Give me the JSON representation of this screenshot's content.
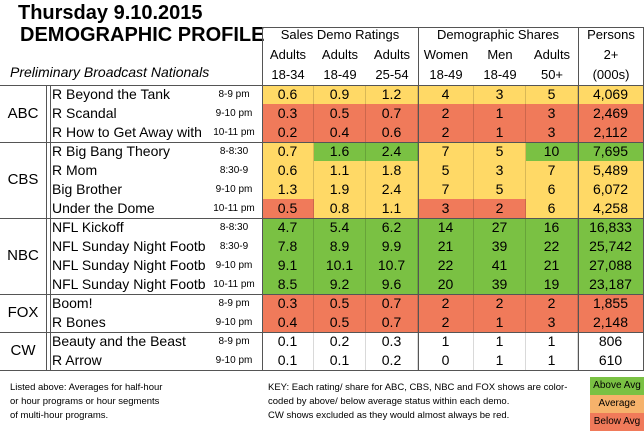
{
  "title_line1": "Thursday 9.10.2015",
  "title_line2": "DEMOGRAPHIC PROFILE",
  "subtitle": "Preliminary Broadcast Nationals",
  "groups": {
    "sales": "Sales Demo Ratings",
    "shares": "Demographic Shares",
    "persons": "Persons"
  },
  "columns": [
    {
      "line1": "Adults",
      "line2": "18-34"
    },
    {
      "line1": "Adults",
      "line2": "18-49"
    },
    {
      "line1": "Adults",
      "line2": "25-54"
    },
    {
      "line1": "Women",
      "line2": "18-49"
    },
    {
      "line1": "Men",
      "line2": "18-49"
    },
    {
      "line1": "Adults",
      "line2": "50+"
    },
    {
      "line1": "2+",
      "line2": "(000s)"
    }
  ],
  "networks": [
    {
      "name": "ABC",
      "rows": [
        {
          "show": "R Beyond the Tank",
          "slot": "8-9 pm",
          "values": [
            "0.6",
            "0.9",
            "1.2",
            "4",
            "3",
            "5",
            "4,069"
          ],
          "status": [
            "avg",
            "avg",
            "avg",
            "avg",
            "avg",
            "avg",
            "avg"
          ]
        },
        {
          "show": "R Scandal",
          "slot": "9-10 pm",
          "values": [
            "0.3",
            "0.5",
            "0.7",
            "2",
            "1",
            "3",
            "2,469"
          ],
          "status": [
            "below",
            "below",
            "below",
            "below",
            "below",
            "below",
            "below"
          ]
        },
        {
          "show": "R How to Get Away with M",
          "slot": "10-11 pm",
          "values": [
            "0.2",
            "0.4",
            "0.6",
            "2",
            "1",
            "3",
            "2,112"
          ],
          "status": [
            "below",
            "below",
            "below",
            "below",
            "below",
            "below",
            "below"
          ]
        }
      ]
    },
    {
      "name": "CBS",
      "rows": [
        {
          "show": "R Big Bang Theory",
          "slot": "8-8:30",
          "values": [
            "0.7",
            "1.6",
            "2.4",
            "7",
            "5",
            "10",
            "7,695"
          ],
          "status": [
            "avg",
            "above",
            "above",
            "avg",
            "avg",
            "above",
            "above"
          ]
        },
        {
          "show": "R Mom",
          "slot": "8:30-9",
          "values": [
            "0.6",
            "1.1",
            "1.8",
            "5",
            "3",
            "7",
            "5,489"
          ],
          "status": [
            "avg",
            "avg",
            "avg",
            "avg",
            "avg",
            "avg",
            "avg"
          ]
        },
        {
          "show": "Big Brother",
          "slot": "9-10 pm",
          "values": [
            "1.3",
            "1.9",
            "2.4",
            "7",
            "5",
            "6",
            "6,072"
          ],
          "status": [
            "avg",
            "avg",
            "avg",
            "avg",
            "avg",
            "avg",
            "avg"
          ]
        },
        {
          "show": "Under the Dome",
          "slot": "10-11 pm",
          "values": [
            "0.5",
            "0.8",
            "1.1",
            "3",
            "2",
            "6",
            "4,258"
          ],
          "status": [
            "below",
            "avg",
            "avg",
            "below",
            "below",
            "avg",
            "avg"
          ]
        }
      ]
    },
    {
      "name": "NBC",
      "rows": [
        {
          "show": "NFL Kickoff",
          "slot": "8-8:30",
          "values": [
            "4.7",
            "5.4",
            "6.2",
            "14",
            "27",
            "16",
            "16,833"
          ],
          "status": [
            "above",
            "above",
            "above",
            "above",
            "above",
            "above",
            "above"
          ]
        },
        {
          "show": "NFL Sunday Night Football",
          "slot": "8:30-9",
          "values": [
            "7.8",
            "8.9",
            "9.9",
            "21",
            "39",
            "22",
            "25,742"
          ],
          "status": [
            "above",
            "above",
            "above",
            "above",
            "above",
            "above",
            "above"
          ]
        },
        {
          "show": "NFL Sunday Night Football",
          "slot": "9-10 pm",
          "values": [
            "9.1",
            "10.1",
            "10.7",
            "22",
            "41",
            "21",
            "27,088"
          ],
          "status": [
            "above",
            "above",
            "above",
            "above",
            "above",
            "above",
            "above"
          ]
        },
        {
          "show": "NFL Sunday Night Football",
          "slot": "10-11 pm",
          "values": [
            "8.5",
            "9.2",
            "9.6",
            "20",
            "39",
            "19",
            "23,187"
          ],
          "status": [
            "above",
            "above",
            "above",
            "above",
            "above",
            "above",
            "above"
          ]
        }
      ]
    },
    {
      "name": "FOX",
      "rows": [
        {
          "show": "Boom!",
          "slot": "8-9 pm",
          "values": [
            "0.3",
            "0.5",
            "0.7",
            "2",
            "2",
            "2",
            "1,855"
          ],
          "status": [
            "below",
            "below",
            "below",
            "below",
            "below",
            "below",
            "below"
          ]
        },
        {
          "show": "R Bones",
          "slot": "9-10 pm",
          "values": [
            "0.4",
            "0.5",
            "0.7",
            "2",
            "1",
            "3",
            "2,148"
          ],
          "status": [
            "below",
            "below",
            "below",
            "below",
            "below",
            "below",
            "below"
          ]
        }
      ]
    },
    {
      "name": "CW",
      "rows": [
        {
          "show": "Beauty and the Beast",
          "slot": "8-9 pm",
          "values": [
            "0.1",
            "0.2",
            "0.3",
            "1",
            "1",
            "1",
            "806"
          ],
          "status": [
            "none",
            "none",
            "none",
            "none",
            "none",
            "none",
            "none"
          ]
        },
        {
          "show": "R Arrow",
          "slot": "9-10 pm",
          "values": [
            "0.1",
            "0.1",
            "0.2",
            "0",
            "1",
            "1",
            "610"
          ],
          "status": [
            "none",
            "none",
            "none",
            "none",
            "none",
            "none",
            "none"
          ]
        }
      ]
    }
  ],
  "notes": {
    "listed": [
      "Listed above: Averages for half-hour",
      "or hour programs or hour segments",
      "of multi-hour programs."
    ],
    "key": [
      "KEY: Each rating/ share for ABC, CBS, NBC and FOX shows are color-",
      "coded by above/ below average status within each demo.",
      "CW shows excluded as they would almost always be red."
    ]
  },
  "legend": {
    "above": "Above Avg",
    "average": "Average",
    "below": "Below Avg"
  },
  "colors": {
    "above": "#7ac143",
    "avg": "#ffd966",
    "below": "#f07a5a",
    "none": "#ffffff",
    "legend_average": "#f6b26b"
  }
}
